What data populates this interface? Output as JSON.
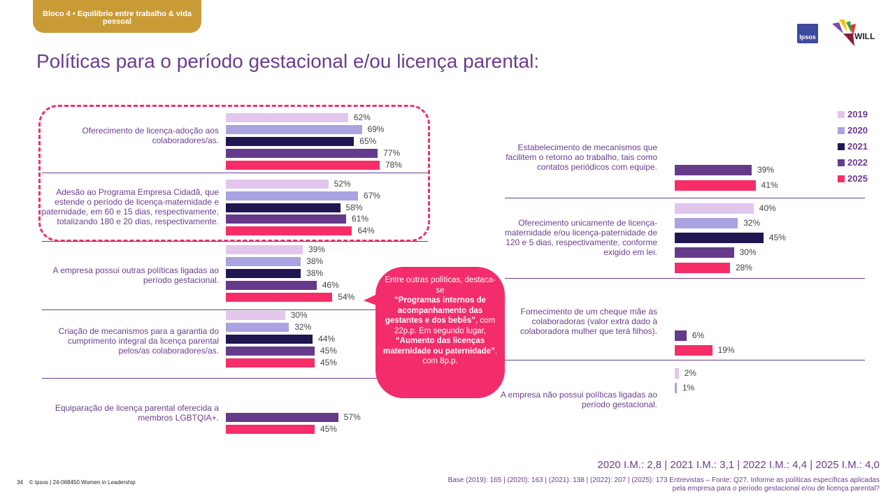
{
  "header": {
    "tag": "Bloco 4 • Equilíbrio entre trabalho & vida pessoal",
    "title": "Políticas para o período gestacional e/ou licença parental:",
    "logos": [
      "Ipsos",
      "WILL"
    ]
  },
  "colors": {
    "2019": "#E2C6EC",
    "2020": "#A9A3E1",
    "2021": "#1F1652",
    "2022": "#663A8A",
    "2025": "#F72D68",
    "text": "#6B3D8E",
    "highlight": "#F32D6B"
  },
  "legend": [
    "2019",
    "2020",
    "2021",
    "2022",
    "2025"
  ],
  "chart_data": {
    "type": "bar",
    "orientation": "horizontal",
    "unit": "%",
    "series_names": [
      "2019",
      "2020",
      "2021",
      "2022",
      "2025"
    ],
    "categories": [
      {
        "label": "Oferecimento de licença-adoção aos colaboradores/as.",
        "values": {
          "2019": 62,
          "2020": 69,
          "2021": 65,
          "2022": 77,
          "2025": 78
        },
        "highlighted": true
      },
      {
        "label": "Adesão ao Programa Empresa Cidadã, que estende o período de licença-maternidade e paternidade, em 60 e 15 dias, respectivamente, totalizando 180 e 20 dias, respectivamente.",
        "values": {
          "2019": 52,
          "2020": 67,
          "2021": 58,
          "2022": 61,
          "2025": 64
        },
        "highlighted": true
      },
      {
        "label": "A empresa possui outras políticas ligadas ao período gestacional.",
        "values": {
          "2019": 39,
          "2020": 38,
          "2021": 38,
          "2022": 46,
          "2025": 54
        }
      },
      {
        "label": "Criação de mecanismos para a garantia do cumprimento integral da licença parental pelos/as colaboradores/as.",
        "values": {
          "2019": 30,
          "2020": 32,
          "2021": 44,
          "2022": 45,
          "2025": 45
        }
      },
      {
        "label": "Equiparação de licença parental oferecida a membros LGBTQIA+.",
        "values": {
          "2022": 57,
          "2025": 45
        }
      },
      {
        "label": "Estabelecimento de mecanismos que facilitem o retorno ao trabalho, tais como contatos periódicos com equipe.",
        "values": {
          "2022": 39,
          "2025": 41
        }
      },
      {
        "label": "Oferecimento unicamente de licença-maternidade e/ou licença-paternidade de 120 e 5 dias, respectivamente, conforme exigido em lei.",
        "values": {
          "2019": 40,
          "2020": 32,
          "2021": 45,
          "2022": 30,
          "2025": 28
        }
      },
      {
        "label": "Fornecimento de um cheque mãe às colaboradoras (valor extra dado à colaboradora mulher que terá filhos).",
        "values": {
          "2022": 6,
          "2025": 19
        }
      },
      {
        "label": "A empresa não possui políticas ligadas ao período gestacional.",
        "values": {
          "2019": 2,
          "2020": 1
        }
      }
    ]
  },
  "callout": {
    "intro": "Entre outras políticas, destaca-se",
    "highlight1": "“Programas internos de acompanhamento das gestantes e dos bebês”",
    "mid": ", com 22p.p. Em segundo lugar,",
    "highlight2": "“Aumento das licenças maternidade ou paternidade”",
    "end": ", com 8p.p."
  },
  "footer": {
    "im": "2020 I.M.: 2,8 | 2021 I.M.: 3,1 | 2022 I.M.: 4,4 | 2025 I.M.: 4,0",
    "base": "Base (2019): 165 | (2020): 163  | (2021): 138  | (2022): 207 | (2025): 173 Entrevistas – Fonte: Q27. Informe as políticas específicas aplicadas pela empresa para o período gestacional e/ou de licença parental?",
    "page": "34",
    "copyright": "© Ipsos | 24-068450 Women in Leadership"
  }
}
